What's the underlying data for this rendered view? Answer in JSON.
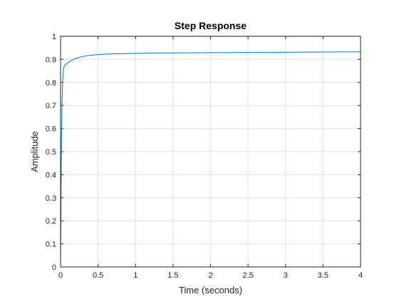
{
  "chart_data": {
    "type": "line",
    "title": "Step Response",
    "xlabel": "Time (seconds)",
    "ylabel": "Amplitude",
    "xlim": [
      0,
      4
    ],
    "ylim": [
      0,
      1
    ],
    "grid": true,
    "x_ticks": [
      0,
      0.5,
      1,
      1.5,
      2,
      2.5,
      3,
      3.5,
      4
    ],
    "x_tick_labels": [
      "0",
      "0.5",
      "1",
      "1.5",
      "2",
      "2.5",
      "3",
      "3.5",
      "4"
    ],
    "y_ticks": [
      0,
      0.1,
      0.2,
      0.3,
      0.4,
      0.5,
      0.6,
      0.7,
      0.8,
      0.9,
      1
    ],
    "y_tick_labels": [
      "0",
      "0.1",
      "0.2",
      "0.3",
      "0.4",
      "0.5",
      "0.6",
      "0.7",
      "0.8",
      "0.9",
      "1"
    ],
    "series": [
      {
        "name": "Step Response",
        "color": "#0072BD",
        "x": [
          0,
          0.005,
          0.01,
          0.02,
          0.03,
          0.04,
          0.05,
          0.06,
          0.08,
          0.1,
          0.15,
          0.2,
          0.3,
          0.4,
          0.5,
          0.6,
          0.7,
          0.8,
          1.0,
          1.2,
          1.5,
          2.0,
          2.5,
          3.0,
          3.5,
          4.0
        ],
        "values": [
          0,
          0.22,
          0.48,
          0.72,
          0.82,
          0.86,
          0.871,
          0.876,
          0.881,
          0.886,
          0.896,
          0.904,
          0.913,
          0.918,
          0.921,
          0.923,
          0.924,
          0.925,
          0.926,
          0.927,
          0.928,
          0.929,
          0.93,
          0.931,
          0.932,
          0.933
        ]
      }
    ]
  }
}
